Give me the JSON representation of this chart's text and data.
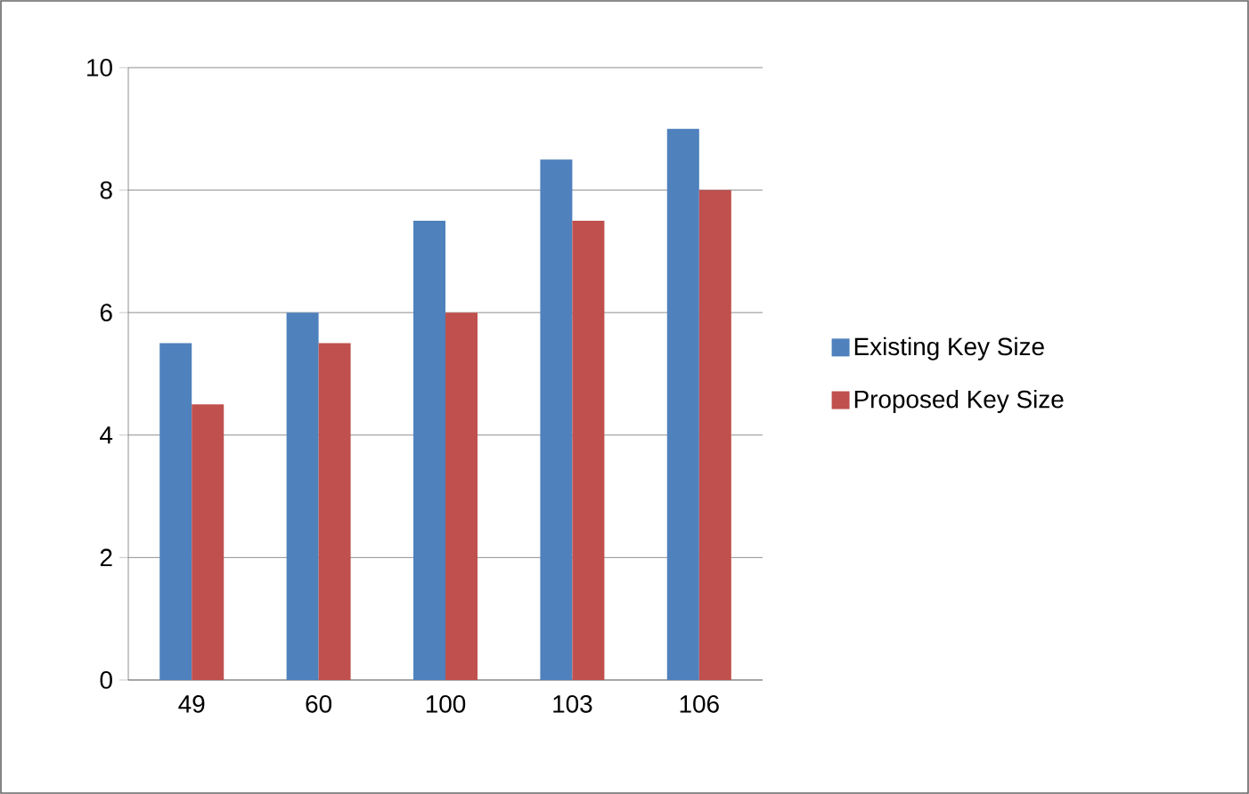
{
  "chart_data": {
    "type": "bar",
    "categories": [
      "49",
      "60",
      "100",
      "103",
      "106"
    ],
    "series": [
      {
        "name": "Existing Key Size",
        "color": "#4f81bd",
        "values": [
          5.5,
          6,
          7.5,
          8.5,
          9
        ]
      },
      {
        "name": "Proposed Key Size",
        "color": "#c0504d",
        "values": [
          4.5,
          5.5,
          6,
          7.5,
          8
        ]
      }
    ],
    "ylim": [
      0,
      10
    ],
    "yticks": [
      0,
      2,
      4,
      6,
      8,
      10
    ],
    "grid": "y",
    "legend": "right"
  }
}
